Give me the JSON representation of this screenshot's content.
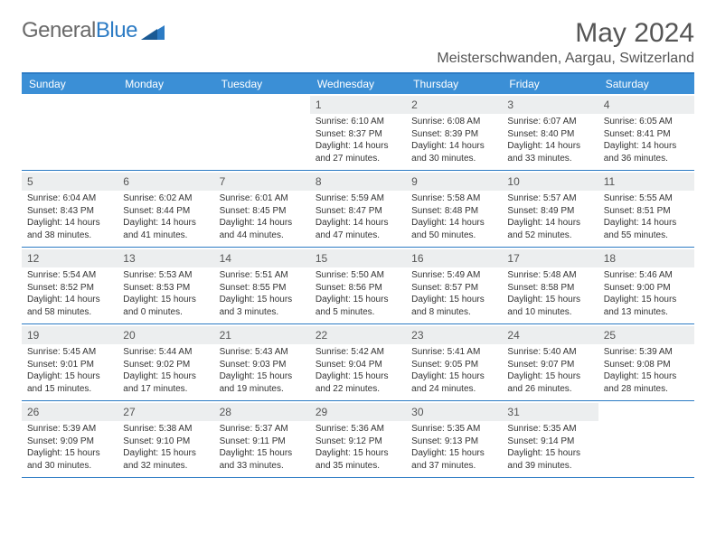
{
  "logo": {
    "word1": "General",
    "word2": "Blue"
  },
  "title": "May 2024",
  "location": "Meisterschwanden, Aargau, Switzerland",
  "colors": {
    "accent": "#3b8fd6",
    "border": "#2c7bc4",
    "dayNumBg": "#eceeef"
  },
  "dayNames": [
    "Sunday",
    "Monday",
    "Tuesday",
    "Wednesday",
    "Thursday",
    "Friday",
    "Saturday"
  ],
  "weeks": [
    [
      null,
      null,
      null,
      {
        "n": "1",
        "sr": "6:10 AM",
        "ss": "8:37 PM",
        "dl": "14 hours and 27 minutes."
      },
      {
        "n": "2",
        "sr": "6:08 AM",
        "ss": "8:39 PM",
        "dl": "14 hours and 30 minutes."
      },
      {
        "n": "3",
        "sr": "6:07 AM",
        "ss": "8:40 PM",
        "dl": "14 hours and 33 minutes."
      },
      {
        "n": "4",
        "sr": "6:05 AM",
        "ss": "8:41 PM",
        "dl": "14 hours and 36 minutes."
      }
    ],
    [
      {
        "n": "5",
        "sr": "6:04 AM",
        "ss": "8:43 PM",
        "dl": "14 hours and 38 minutes."
      },
      {
        "n": "6",
        "sr": "6:02 AM",
        "ss": "8:44 PM",
        "dl": "14 hours and 41 minutes."
      },
      {
        "n": "7",
        "sr": "6:01 AM",
        "ss": "8:45 PM",
        "dl": "14 hours and 44 minutes."
      },
      {
        "n": "8",
        "sr": "5:59 AM",
        "ss": "8:47 PM",
        "dl": "14 hours and 47 minutes."
      },
      {
        "n": "9",
        "sr": "5:58 AM",
        "ss": "8:48 PM",
        "dl": "14 hours and 50 minutes."
      },
      {
        "n": "10",
        "sr": "5:57 AM",
        "ss": "8:49 PM",
        "dl": "14 hours and 52 minutes."
      },
      {
        "n": "11",
        "sr": "5:55 AM",
        "ss": "8:51 PM",
        "dl": "14 hours and 55 minutes."
      }
    ],
    [
      {
        "n": "12",
        "sr": "5:54 AM",
        "ss": "8:52 PM",
        "dl": "14 hours and 58 minutes."
      },
      {
        "n": "13",
        "sr": "5:53 AM",
        "ss": "8:53 PM",
        "dl": "15 hours and 0 minutes."
      },
      {
        "n": "14",
        "sr": "5:51 AM",
        "ss": "8:55 PM",
        "dl": "15 hours and 3 minutes."
      },
      {
        "n": "15",
        "sr": "5:50 AM",
        "ss": "8:56 PM",
        "dl": "15 hours and 5 minutes."
      },
      {
        "n": "16",
        "sr": "5:49 AM",
        "ss": "8:57 PM",
        "dl": "15 hours and 8 minutes."
      },
      {
        "n": "17",
        "sr": "5:48 AM",
        "ss": "8:58 PM",
        "dl": "15 hours and 10 minutes."
      },
      {
        "n": "18",
        "sr": "5:46 AM",
        "ss": "9:00 PM",
        "dl": "15 hours and 13 minutes."
      }
    ],
    [
      {
        "n": "19",
        "sr": "5:45 AM",
        "ss": "9:01 PM",
        "dl": "15 hours and 15 minutes."
      },
      {
        "n": "20",
        "sr": "5:44 AM",
        "ss": "9:02 PM",
        "dl": "15 hours and 17 minutes."
      },
      {
        "n": "21",
        "sr": "5:43 AM",
        "ss": "9:03 PM",
        "dl": "15 hours and 19 minutes."
      },
      {
        "n": "22",
        "sr": "5:42 AM",
        "ss": "9:04 PM",
        "dl": "15 hours and 22 minutes."
      },
      {
        "n": "23",
        "sr": "5:41 AM",
        "ss": "9:05 PM",
        "dl": "15 hours and 24 minutes."
      },
      {
        "n": "24",
        "sr": "5:40 AM",
        "ss": "9:07 PM",
        "dl": "15 hours and 26 minutes."
      },
      {
        "n": "25",
        "sr": "5:39 AM",
        "ss": "9:08 PM",
        "dl": "15 hours and 28 minutes."
      }
    ],
    [
      {
        "n": "26",
        "sr": "5:39 AM",
        "ss": "9:09 PM",
        "dl": "15 hours and 30 minutes."
      },
      {
        "n": "27",
        "sr": "5:38 AM",
        "ss": "9:10 PM",
        "dl": "15 hours and 32 minutes."
      },
      {
        "n": "28",
        "sr": "5:37 AM",
        "ss": "9:11 PM",
        "dl": "15 hours and 33 minutes."
      },
      {
        "n": "29",
        "sr": "5:36 AM",
        "ss": "9:12 PM",
        "dl": "15 hours and 35 minutes."
      },
      {
        "n": "30",
        "sr": "5:35 AM",
        "ss": "9:13 PM",
        "dl": "15 hours and 37 minutes."
      },
      {
        "n": "31",
        "sr": "5:35 AM",
        "ss": "9:14 PM",
        "dl": "15 hours and 39 minutes."
      },
      null
    ]
  ],
  "labels": {
    "sunrise": "Sunrise:",
    "sunset": "Sunset:",
    "daylight": "Daylight:"
  }
}
